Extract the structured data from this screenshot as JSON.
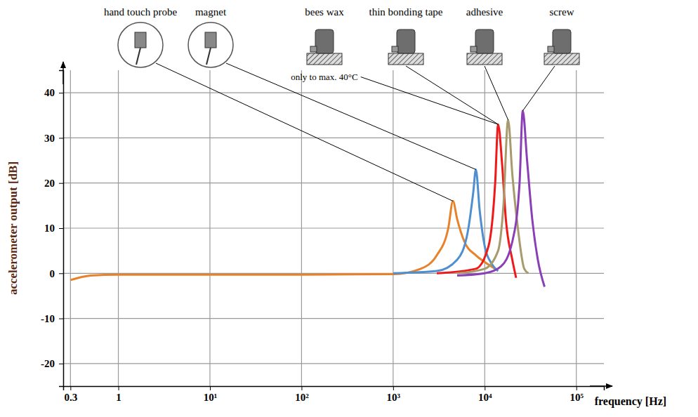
{
  "chart_data": {
    "type": "line",
    "x_label": "frequency [Hz]",
    "y_label": "accelerometer output [dB]",
    "log": "x",
    "grid": true,
    "xlim": [
      0.25,
      200000
    ],
    "xticks": [
      0.3,
      1,
      {
        "value": 10,
        "label": "10¹"
      },
      {
        "value": 100,
        "label": "10²"
      },
      {
        "value": 1000,
        "label": "10³"
      },
      {
        "value": 10000,
        "label": "10⁴"
      },
      {
        "value": 100000,
        "label": "10⁵"
      }
    ],
    "ylim": [
      -25,
      45
    ],
    "yticks": [
      -20,
      -10,
      0,
      10,
      20,
      30,
      40
    ],
    "series": [
      {
        "name": "hand touch probe",
        "color": "#e8822a",
        "x": [
          0.3,
          0.4,
          0.5,
          1,
          10,
          100,
          1000,
          2000,
          3000,
          4000,
          4500,
          5000,
          6000,
          8000,
          10000,
          13000
        ],
        "values": [
          -1.5,
          -0.8,
          -0.5,
          -0.3,
          -0.3,
          -0.3,
          -0.2,
          1,
          4,
          10,
          16,
          12,
          7,
          4,
          2.5,
          1
        ]
      },
      {
        "name": "magnet",
        "color": "#4f8fd0",
        "x": [
          1000,
          3000,
          5000,
          6500,
          7500,
          8000,
          8800,
          10000,
          12000,
          14000
        ],
        "values": [
          0,
          0.5,
          3,
          9,
          18,
          23,
          14,
          6,
          2,
          0.5
        ]
      },
      {
        "name": "bees wax",
        "color": "#f01818",
        "x": [
          3000,
          8000,
          11000,
          13000,
          14000,
          15500,
          17000,
          20000,
          22000
        ],
        "values": [
          0,
          1,
          6,
          20,
          33,
          24,
          12,
          3,
          -1
        ]
      },
      {
        "name": "adhesive",
        "color": "#a89a6c",
        "x": [
          5000,
          10000,
          14000,
          16000,
          18000,
          20000,
          23000,
          27000,
          30000
        ],
        "values": [
          0,
          1,
          5,
          15,
          34,
          22,
          10,
          1,
          0
        ]
      },
      {
        "name": "screw",
        "color": "#8a3fb5",
        "x": [
          5000,
          10000,
          15000,
          20000,
          24000,
          26000,
          29000,
          33000,
          38000,
          45000
        ],
        "values": [
          -0.5,
          0,
          1.5,
          7,
          20,
          36,
          25,
          12,
          3,
          -3
        ]
      }
    ],
    "annotations": [
      "thin bonding tape",
      "only to max. 40°C"
    ]
  }
}
